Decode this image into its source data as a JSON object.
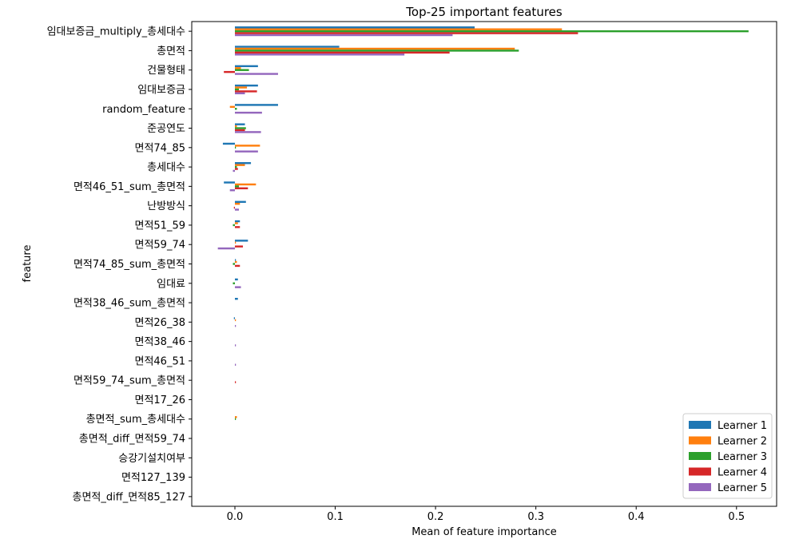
{
  "chart_data": {
    "type": "bar",
    "orientation": "horizontal",
    "title": "Top-25 important features",
    "xlabel": "Mean of feature importance",
    "ylabel": "feature",
    "xlim": [
      -0.043,
      0.54
    ],
    "xticks": [
      0.0,
      0.1,
      0.2,
      0.3,
      0.4,
      0.5
    ],
    "xtick_labels": [
      "0.0",
      "0.1",
      "0.2",
      "0.3",
      "0.4",
      "0.5"
    ],
    "grid": false,
    "legend_position": "lower-right",
    "categories": [
      "임대보증금_multiply_총세대수",
      "총면적",
      "건물형태",
      "임대보증금",
      "random_feature",
      "준공연도",
      "면적74_85",
      "총세대수",
      "면적46_51_sum_총면적",
      "난방방식",
      "면적51_59",
      "면적59_74",
      "면적74_85_sum_총면적",
      "임대료",
      "면적38_46_sum_총면적",
      "면적26_38",
      "면적38_46",
      "면적46_51",
      "면적59_74_sum_총면적",
      "면적17_26",
      "총면적_sum_총세대수",
      "총면적_diff_면적59_74",
      "승강기설치여부",
      "면적127_139",
      "총면적_diff_면적85_127"
    ],
    "series": [
      {
        "name": "Learner 1",
        "color": "#1f77b4",
        "values": [
          0.239,
          0.104,
          0.023,
          0.023,
          0.043,
          0.01,
          -0.012,
          0.016,
          -0.011,
          0.011,
          0.005,
          0.013,
          0.001,
          0.003,
          0.003,
          -0.001,
          0.0,
          0.0,
          0.0,
          0.0,
          0.0,
          0.0,
          0.0,
          0.0,
          0.0
        ]
      },
      {
        "name": "Learner 2",
        "color": "#ff7f0e",
        "values": [
          0.326,
          0.279,
          0.006,
          0.012,
          -0.005,
          0.002,
          0.025,
          0.01,
          0.021,
          0.005,
          0.003,
          0.001,
          0.002,
          0.0,
          0.0,
          0.001,
          0.0,
          0.0,
          0.0,
          0.0,
          0.002,
          0.0,
          0.0,
          0.0,
          0.0
        ]
      },
      {
        "name": "Learner 3",
        "color": "#2ca02c",
        "values": [
          0.512,
          0.283,
          0.014,
          0.004,
          0.002,
          0.011,
          0.001,
          0.002,
          0.004,
          0.0,
          -0.002,
          0.0,
          -0.002,
          -0.002,
          0.0,
          0.0,
          0.0,
          0.0,
          0.0,
          0.0,
          0.001,
          0.0,
          0.0,
          0.0,
          0.0
        ]
      },
      {
        "name": "Learner 4",
        "color": "#d62728",
        "values": [
          0.342,
          0.214,
          -0.011,
          0.022,
          0.0,
          0.01,
          0.0,
          0.003,
          0.013,
          -0.001,
          0.005,
          0.008,
          0.005,
          0.0,
          0.0,
          0.0,
          0.0,
          0.0,
          0.001,
          0.0,
          0.0,
          0.0,
          0.0,
          0.0,
          0.0
        ]
      },
      {
        "name": "Learner 5",
        "color": "#9467bd",
        "values": [
          0.217,
          0.169,
          0.043,
          0.01,
          0.027,
          0.026,
          0.023,
          -0.002,
          -0.005,
          0.004,
          0.0,
          -0.017,
          0.0,
          0.006,
          0.0,
          0.001,
          0.001,
          0.001,
          0.0,
          0.0,
          0.0,
          0.0,
          0.0,
          0.0,
          0.0
        ]
      }
    ]
  }
}
